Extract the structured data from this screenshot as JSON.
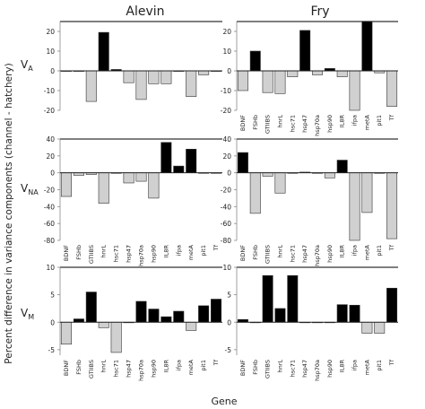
{
  "figure": {
    "col_titles": [
      "Alevin",
      "Fry"
    ],
    "ylabel": "Percent difference in variance components (channel - hatchery)",
    "xlabel": "Gene",
    "row_labels": [
      {
        "main": "V",
        "sub": "A"
      },
      {
        "main": "V",
        "sub": "NA"
      },
      {
        "main": "V",
        "sub": "M"
      }
    ],
    "colors": {
      "positive": "#000000",
      "negative": "#d0d0d0",
      "stroke": "#333333",
      "zero_line": "#222222"
    }
  },
  "chart_data": [
    {
      "type": "bar",
      "row": "VA",
      "column": "Alevin",
      "categories": [
        "BDNF",
        "FSHb",
        "GTIIBS",
        "hnrL",
        "hsc71",
        "hsp47",
        "hsp70a",
        "hsp90",
        "IL8R",
        "ifpa",
        "metA",
        "pit1",
        "Tf"
      ],
      "values": [
        0,
        0,
        -15.5,
        19.5,
        0.7,
        -6,
        -14.5,
        -6.5,
        -6.5,
        0,
        -13,
        -2,
        0
      ],
      "ylim": [
        -20,
        25
      ],
      "yticks": [
        20,
        10,
        0,
        -10,
        -20
      ],
      "show_xticklabels": false
    },
    {
      "type": "bar",
      "row": "VA",
      "column": "Fry",
      "categories": [
        "BDNF",
        "FSHb",
        "GTIIBS",
        "hnrL",
        "hsc71",
        "hsp47",
        "hsp70a",
        "hsp90",
        "IL8R",
        "ifpa",
        "metA",
        "pit1",
        "Tf"
      ],
      "values": [
        -10,
        10,
        -11,
        -11.5,
        -3,
        20.5,
        -2,
        1.2,
        -3,
        -20,
        25,
        -1,
        -18
      ],
      "ylim": [
        -20,
        25
      ],
      "yticks": [
        20,
        10,
        0,
        -10,
        -20
      ],
      "show_xticklabels": true
    },
    {
      "type": "bar",
      "row": "VNA",
      "column": "Alevin",
      "categories": [
        "BDNF",
        "FSHb",
        "GTIIBS",
        "hnrL",
        "hsc71",
        "hsp47",
        "hsp70a",
        "hsp90",
        "IL8R",
        "ifpa",
        "metA",
        "pit1",
        "Tf"
      ],
      "values": [
        -28,
        -3,
        -2,
        -36,
        0,
        -12,
        -10,
        -30,
        36,
        8,
        28,
        0,
        0
      ],
      "ylim": [
        -80,
        40
      ],
      "yticks": [
        40,
        20,
        0,
        -20,
        -40,
        -60,
        -80
      ],
      "show_xticklabels": true
    },
    {
      "type": "bar",
      "row": "VNA",
      "column": "Fry",
      "categories": [
        "BDNF",
        "FSHb",
        "GTIIBS",
        "hnrL",
        "hsc71",
        "hsp47",
        "hsp70a",
        "hsp90",
        "IL8R",
        "ifpa",
        "metA",
        "pit1",
        "Tf"
      ],
      "values": [
        24,
        -48,
        -4,
        -24,
        0,
        0.8,
        0,
        -6,
        15,
        -80,
        -47,
        0,
        -78
      ],
      "ylim": [
        -80,
        40
      ],
      "yticks": [
        40,
        20,
        0,
        -20,
        -40,
        -60,
        -80
      ],
      "show_xticklabels": true
    },
    {
      "type": "bar",
      "row": "VM",
      "column": "Alevin",
      "categories": [
        "BDNF",
        "FSHb",
        "GTIIBS",
        "hnrL",
        "hsc71",
        "hsp47",
        "hsp70a",
        "hsp90",
        "IL8R",
        "ifpa",
        "metA",
        "pit1",
        "Tf"
      ],
      "values": [
        -4,
        0.6,
        5.5,
        -1,
        -5.5,
        0,
        3.8,
        2.4,
        1,
        2,
        -1.5,
        3,
        4.2
      ],
      "ylim": [
        -6,
        10
      ],
      "yticks": [
        10,
        5,
        0,
        -5
      ],
      "show_xticklabels": true
    },
    {
      "type": "bar",
      "row": "VM",
      "column": "Fry",
      "categories": [
        "BDNF",
        "FSHb",
        "GTIIBS",
        "hnrL",
        "hsc71",
        "hsp47",
        "hsp70a",
        "hsp90",
        "IL8R",
        "ifpa",
        "metA",
        "pit1",
        "Tf"
      ],
      "values": [
        0.5,
        0,
        8.5,
        2.5,
        8.5,
        0,
        0,
        0,
        3.2,
        3.1,
        -2,
        -2,
        6.2
      ],
      "ylim": [
        -6,
        10
      ],
      "yticks": [
        10,
        5,
        0,
        -5
      ],
      "show_xticklabels": true
    }
  ]
}
